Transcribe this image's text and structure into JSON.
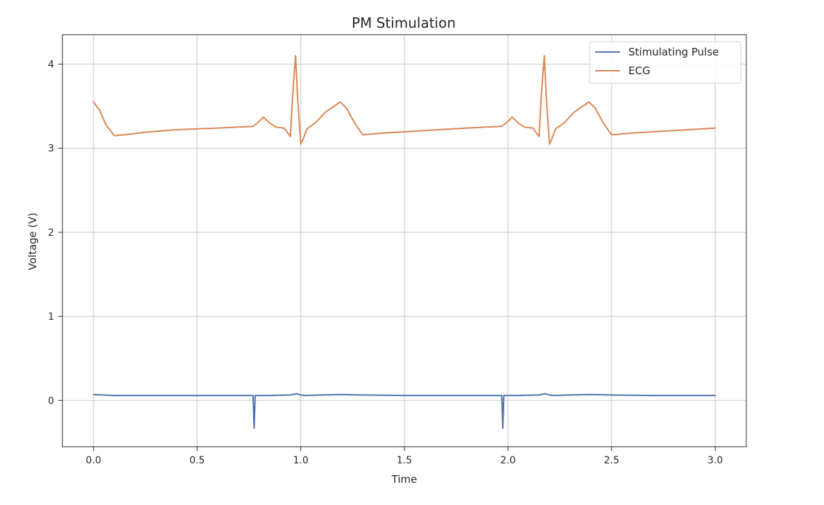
{
  "chart_data": {
    "type": "line",
    "title": "PM Stimulation",
    "xlabel": "Time",
    "ylabel": "Voltage (V)",
    "xlim": [
      -0.15,
      3.15
    ],
    "ylim": [
      -0.55,
      4.35
    ],
    "grid": true,
    "legend_position": "top-right",
    "x_ticks": [
      0.0,
      0.5,
      1.0,
      1.5,
      2.0,
      2.5,
      3.0
    ],
    "x_tick_labels": [
      "0.0",
      "0.5",
      "1.0",
      "1.5",
      "2.0",
      "2.5",
      "3.0"
    ],
    "y_ticks": [
      0,
      1,
      2,
      3,
      4
    ],
    "y_tick_labels": [
      "0",
      "1",
      "2",
      "3",
      "4"
    ],
    "series": [
      {
        "name": "Stimulating Pulse",
        "color": "#4c72b0",
        "x": [
          0.0,
          0.05,
          0.1,
          0.3,
          0.5,
          0.7,
          0.76,
          0.77,
          0.775,
          0.78,
          0.79,
          0.85,
          0.95,
          0.98,
          1.0,
          1.02,
          1.1,
          1.2,
          1.3,
          1.5,
          1.7,
          1.96,
          1.97,
          1.975,
          1.98,
          1.99,
          2.05,
          2.15,
          2.18,
          2.2,
          2.22,
          2.3,
          2.4,
          2.5,
          2.7,
          3.0
        ],
        "y": [
          0.07,
          0.065,
          0.06,
          0.06,
          0.06,
          0.06,
          0.06,
          0.06,
          -0.33,
          0.06,
          0.06,
          0.06,
          0.065,
          0.08,
          0.065,
          0.06,
          0.065,
          0.07,
          0.065,
          0.06,
          0.06,
          0.06,
          0.06,
          -0.33,
          0.06,
          0.06,
          0.06,
          0.065,
          0.08,
          0.065,
          0.06,
          0.065,
          0.07,
          0.065,
          0.06,
          0.06
        ]
      },
      {
        "name": "ECG",
        "color": "#dd8452",
        "x": [
          0.0,
          0.03,
          0.06,
          0.1,
          0.15,
          0.25,
          0.4,
          0.6,
          0.77,
          0.8,
          0.82,
          0.85,
          0.88,
          0.92,
          0.95,
          0.96,
          0.975,
          0.985,
          1.0,
          1.01,
          1.03,
          1.07,
          1.12,
          1.19,
          1.22,
          1.26,
          1.3,
          1.4,
          1.6,
          1.8,
          1.97,
          2.0,
          2.02,
          2.05,
          2.08,
          2.12,
          2.15,
          2.16,
          2.175,
          2.185,
          2.2,
          2.21,
          2.23,
          2.27,
          2.32,
          2.39,
          2.42,
          2.46,
          2.5,
          2.6,
          2.8,
          3.0
        ],
        "y": [
          3.55,
          3.45,
          3.28,
          3.15,
          3.16,
          3.19,
          3.22,
          3.24,
          3.26,
          3.32,
          3.37,
          3.3,
          3.25,
          3.24,
          3.14,
          3.6,
          4.1,
          3.6,
          3.05,
          3.1,
          3.23,
          3.3,
          3.43,
          3.55,
          3.48,
          3.3,
          3.16,
          3.18,
          3.21,
          3.24,
          3.26,
          3.32,
          3.37,
          3.3,
          3.25,
          3.24,
          3.14,
          3.6,
          4.1,
          3.6,
          3.05,
          3.1,
          3.23,
          3.3,
          3.43,
          3.55,
          3.48,
          3.3,
          3.16,
          3.18,
          3.21,
          3.24
        ]
      }
    ]
  }
}
